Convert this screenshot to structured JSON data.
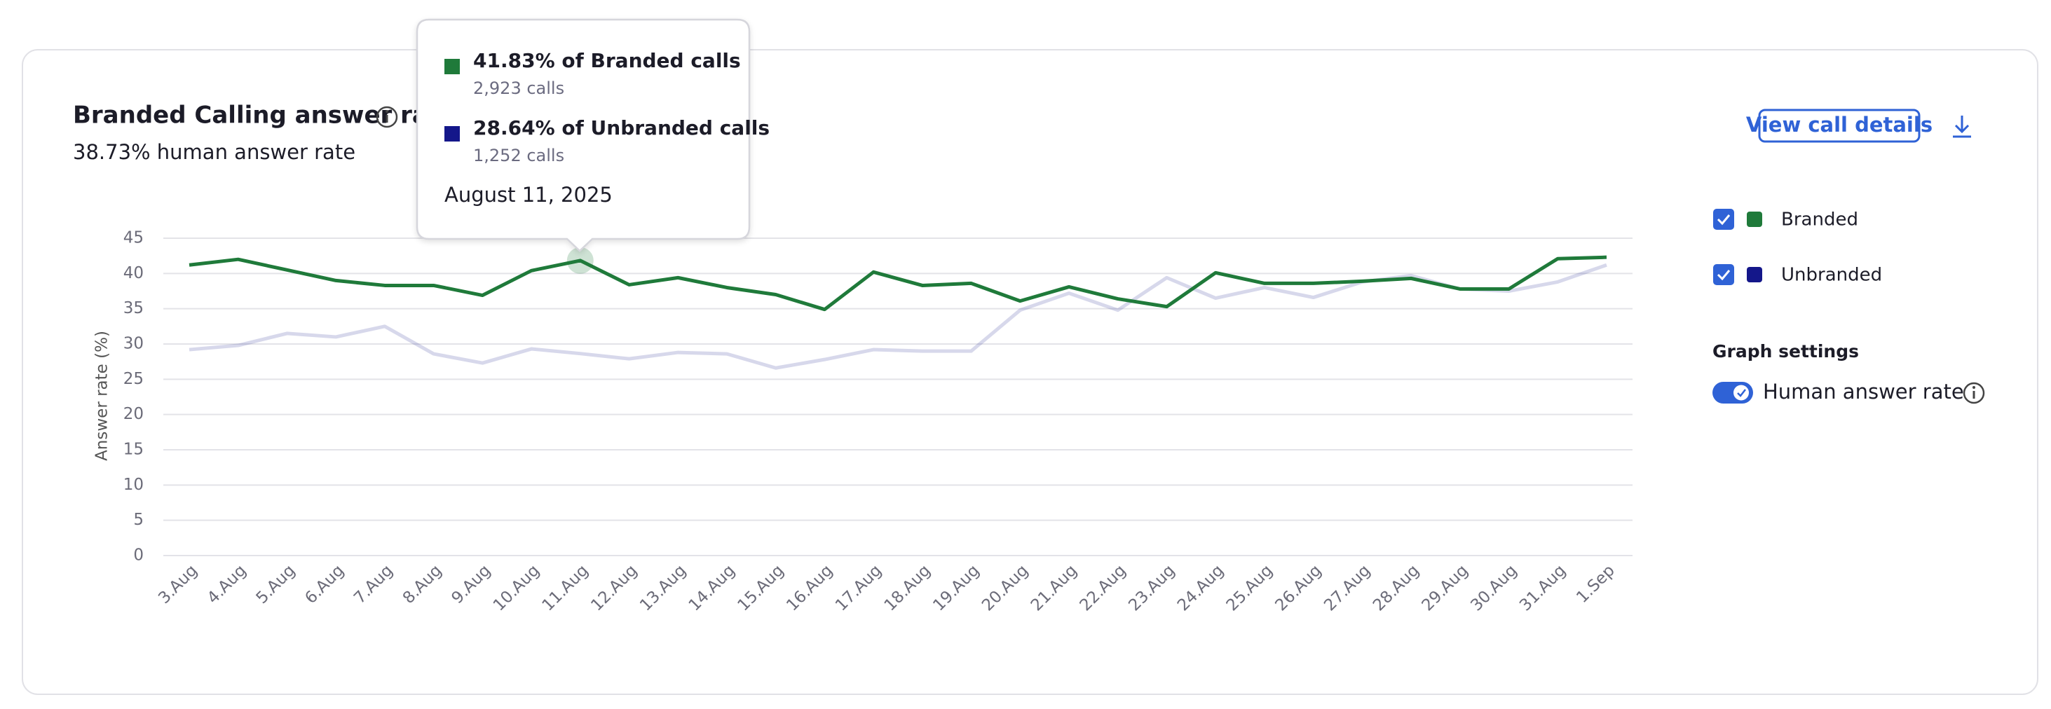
{
  "header": {
    "title": "Branded Calling answer rate",
    "subtitle": "38.73% human answer rate"
  },
  "actions": {
    "view_details": "View call details"
  },
  "settings": {
    "title": "Graph settings",
    "toggle": "Human answer rate"
  },
  "tooltip": {
    "items": [
      {
        "label": "41.83% of Branded calls",
        "sub": "2,923 calls"
      },
      {
        "label": "28.64% of Unbranded calls",
        "sub": "1,252 calls"
      }
    ],
    "date": "August 11, 2025"
  },
  "chart_data": {
    "type": "line",
    "y_label": "Answer rate (%)",
    "categories": [
      "3.Aug",
      "4.Aug",
      "5.Aug",
      "6.Aug",
      "7.Aug",
      "8.Aug",
      "9.Aug",
      "10.Aug",
      "11.Aug",
      "12.Aug",
      "13.Aug",
      "14.Aug",
      "15.Aug",
      "16.Aug",
      "17.Aug",
      "18.Aug",
      "19.Aug",
      "20.Aug",
      "21.Aug",
      "22.Aug",
      "23.Aug",
      "24.Aug",
      "25.Aug",
      "26.Aug",
      "27.Aug",
      "28.Aug",
      "29.Aug",
      "30.Aug",
      "31.Aug",
      "1.Sep"
    ],
    "series": [
      {
        "name": "Branded",
        "color": "#1f7a3a",
        "values": [
          41.2,
          42,
          40.5,
          39,
          38.3,
          38.3,
          36.9,
          40.4,
          41.83,
          38.4,
          39.4,
          38,
          37,
          34.9,
          40.2,
          38.3,
          38.6,
          36.1,
          38.1,
          36.4,
          35.3,
          40.1,
          38.6,
          38.6,
          38.9,
          39.3,
          37.8,
          37.8,
          42.1,
          42.3
        ]
      },
      {
        "name": "Unbranded",
        "color": "#14178a",
        "values": [
          29.2,
          29.8,
          31.5,
          31,
          32.5,
          28.6,
          27.3,
          29.3,
          28.64,
          27.9,
          28.8,
          28.6,
          26.6,
          27.8,
          29.2,
          29,
          29,
          34.8,
          37.2,
          34.8,
          39.4,
          36.5,
          38,
          36.6,
          38.8,
          39.7,
          37.8,
          37.5,
          38.8,
          41.2
        ]
      }
    ],
    "ylim": [
      0,
      45
    ],
    "yticks": [
      0,
      5,
      10,
      15,
      20,
      25,
      30,
      35,
      40,
      45
    ],
    "grid": true
  }
}
